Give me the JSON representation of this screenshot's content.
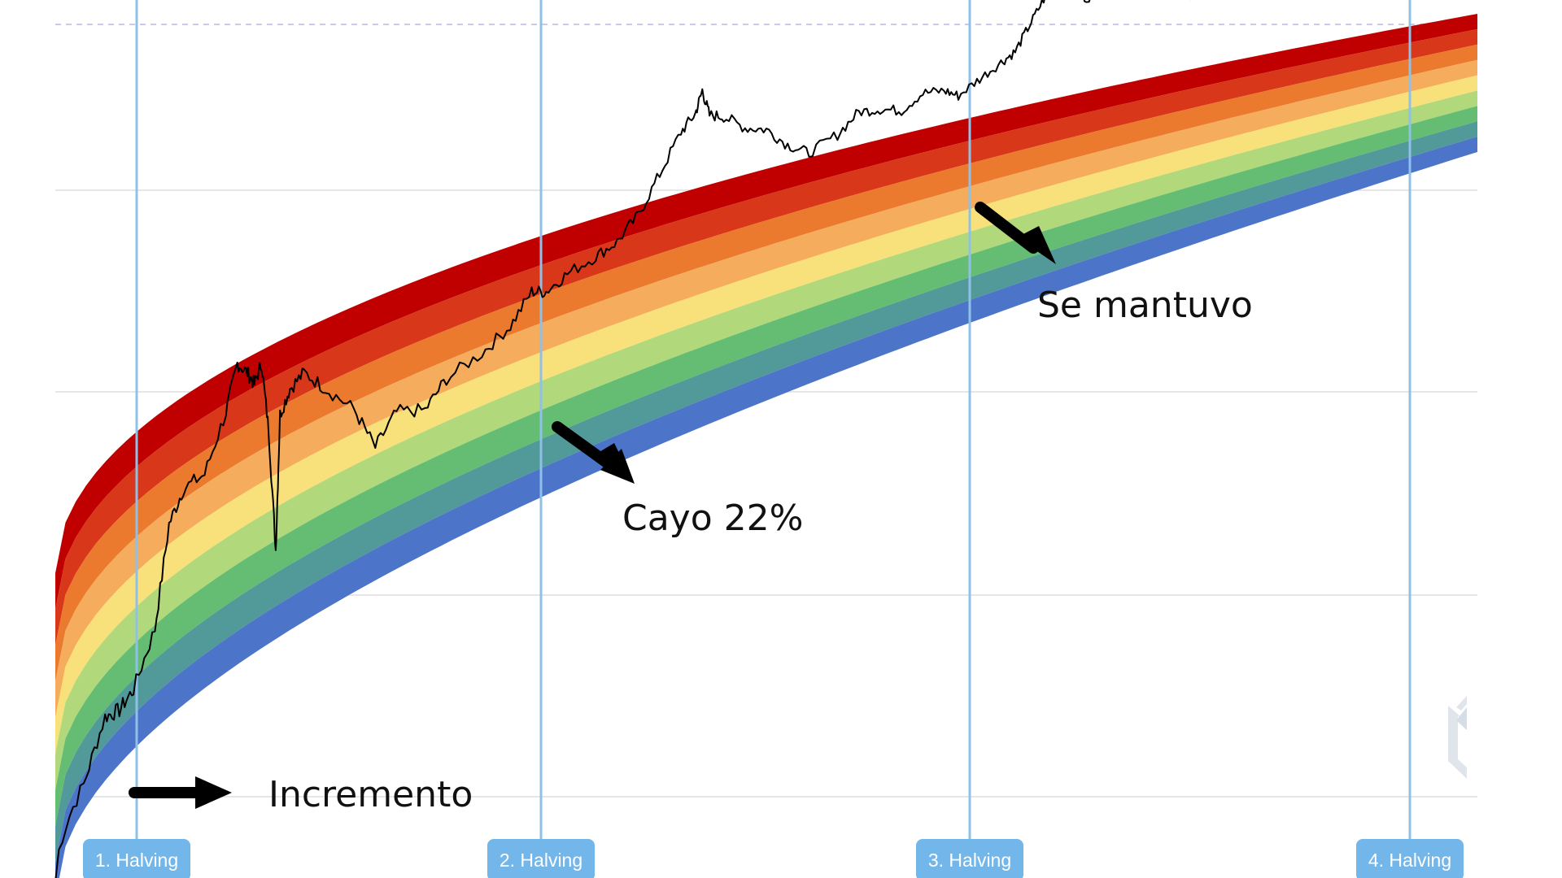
{
  "chart_data": {
    "type": "line",
    "title": "",
    "xlabel": "",
    "ylabel": "",
    "y_scale": "log",
    "grid": true,
    "bands": {
      "count": 9,
      "colors": [
        "#c00000",
        "#d8371a",
        "#ec7a2e",
        "#f5ac5c",
        "#f8e17b",
        "#b1d87b",
        "#65bd73",
        "#52999a",
        "#4c74c8"
      ]
    },
    "halvings": [
      {
        "label": "1. Halving"
      },
      {
        "label": "2. Halving"
      },
      {
        "label": "3. Halving"
      },
      {
        "label": "4. Halving"
      }
    ],
    "annotations": [
      {
        "text": "Incremento"
      },
      {
        "text": "Cayo 22%"
      },
      {
        "text": "Se mantuvo"
      }
    ],
    "series": [
      {
        "color": "#000000",
        "points": [
          [
            0.0,
            0.05
          ],
          [
            0.02,
            0.08
          ],
          [
            0.035,
            0.2
          ],
          [
            0.045,
            0.17
          ],
          [
            0.055,
            0.19
          ],
          [
            0.07,
            0.32
          ],
          [
            0.08,
            0.62
          ],
          [
            0.09,
            0.7
          ],
          [
            0.105,
            0.7
          ],
          [
            0.12,
            0.86
          ],
          [
            0.128,
            1.0
          ],
          [
            0.135,
            0.95
          ],
          [
            0.14,
            0.9
          ],
          [
            0.145,
            0.955
          ],
          [
            0.15,
            0.72
          ],
          [
            0.155,
            0.3
          ],
          [
            0.158,
            0.75
          ],
          [
            0.165,
            0.82
          ],
          [
            0.175,
            0.85
          ],
          [
            0.19,
            0.76
          ],
          [
            0.21,
            0.64
          ],
          [
            0.225,
            0.47
          ],
          [
            0.24,
            0.56
          ],
          [
            0.26,
            0.52
          ],
          [
            0.275,
            0.6
          ],
          [
            0.3,
            0.64
          ],
          [
            0.32,
            0.7
          ],
          [
            0.335,
            0.8
          ],
          [
            0.345,
            0.78
          ],
          [
            0.36,
            0.82
          ],
          [
            0.38,
            0.85
          ],
          [
            0.395,
            0.88
          ],
          [
            0.41,
            0.96
          ],
          [
            0.425,
            1.1
          ],
          [
            0.44,
            1.25
          ],
          [
            0.45,
            1.31
          ],
          [
            0.455,
            1.4
          ],
          [
            0.46,
            1.29
          ],
          [
            0.47,
            1.27
          ],
          [
            0.485,
            1.2
          ],
          [
            0.5,
            1.17
          ],
          [
            0.515,
            1.08
          ],
          [
            0.53,
            1.02
          ],
          [
            0.55,
            1.07
          ],
          [
            0.565,
            1.15
          ],
          [
            0.58,
            1.14
          ],
          [
            0.595,
            1.11
          ],
          [
            0.61,
            1.17
          ],
          [
            0.625,
            1.16
          ],
          [
            0.635,
            1.12
          ],
          [
            0.65,
            1.18
          ],
          [
            0.665,
            1.24
          ],
          [
            0.675,
            1.28
          ],
          [
            0.685,
            1.4
          ],
          [
            0.695,
            1.52
          ],
          [
            0.705,
            1.58
          ],
          [
            0.715,
            1.55
          ],
          [
            0.725,
            1.49
          ],
          [
            0.74,
            1.53
          ],
          [
            0.755,
            1.55
          ],
          [
            0.77,
            1.52
          ],
          [
            0.785,
            1.45
          ],
          [
            0.8,
            1.41
          ],
          [
            0.815,
            1.43
          ],
          [
            0.83,
            1.39
          ],
          [
            0.845,
            1.42
          ],
          [
            0.86,
            1.46
          ],
          [
            0.875,
            1.44
          ],
          [
            0.89,
            1.47
          ],
          [
            0.905,
            1.48
          ],
          [
            0.92,
            1.49
          ],
          [
            0.935,
            1.52
          ],
          [
            0.95,
            1.54
          ],
          [
            0.965,
            1.58
          ],
          [
            0.975,
            1.6
          ],
          [
            0.985,
            1.59
          ]
        ]
      }
    ]
  }
}
